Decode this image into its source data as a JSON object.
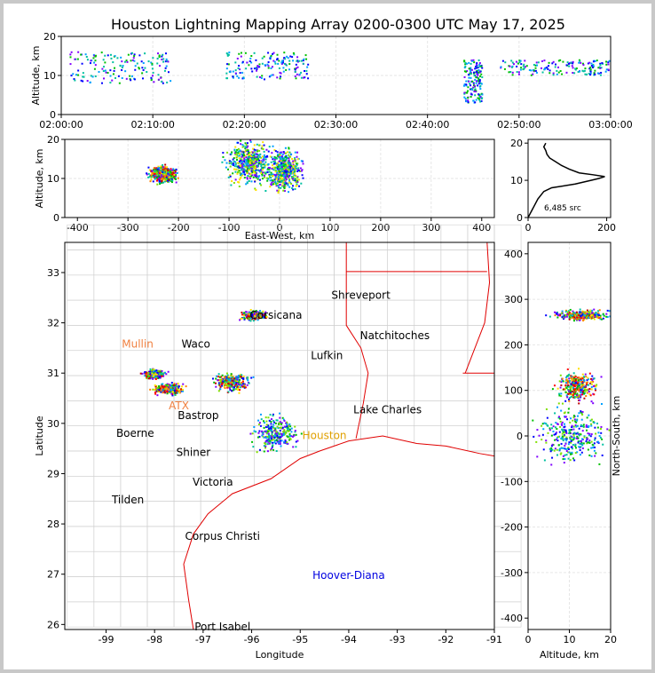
{
  "title": "Houston Lightning Mapping Array 0200-0300 UTC May 17, 2025",
  "chart_data": [
    {
      "id": "time-height",
      "type": "scatter",
      "xlabel": "",
      "ylabel": "Altitude, km",
      "x_ticks": [
        "02:00:00",
        "02:10:00",
        "02:20:00",
        "02:30:00",
        "02:40:00",
        "02:50:00",
        "03:00:00"
      ],
      "xlim": [
        "02:00:00",
        "03:00:00"
      ],
      "ylim": [
        0,
        20
      ],
      "y_ticks": [
        0,
        10,
        20
      ],
      "grid": true,
      "clusters": [
        {
          "t_min": 1,
          "t_max": 12,
          "alt_min": 8,
          "alt_max": 16
        },
        {
          "t_min": 18,
          "t_max": 27,
          "alt_min": 9,
          "alt_max": 16
        },
        {
          "t_min": 44,
          "t_max": 46,
          "alt_min": 3,
          "alt_max": 14
        },
        {
          "t_min": 48,
          "t_max": 60,
          "alt_min": 10,
          "alt_max": 14
        }
      ]
    },
    {
      "id": "east-west-altitude",
      "type": "scatter",
      "xlabel": "East-West, km",
      "ylabel": "Altitude, km",
      "xlim": [
        -425,
        425
      ],
      "ylim": [
        0,
        20
      ],
      "x_ticks": [
        -400,
        -300,
        -200,
        -100,
        0,
        100,
        200,
        300,
        400
      ],
      "y_ticks": [
        0,
        10,
        20
      ],
      "grid": true,
      "clusters": [
        {
          "x": -230,
          "alt": 11,
          "spread_x": 25,
          "spread_alt": 2
        },
        {
          "x": -60,
          "alt": 14,
          "spread_x": 40,
          "spread_alt": 5
        },
        {
          "x": 10,
          "alt": 12,
          "spread_x": 30,
          "spread_alt": 5
        }
      ]
    },
    {
      "id": "altitude-histogram",
      "type": "line",
      "xlabel": "",
      "ylabel": "",
      "xlim": [
        0,
        210
      ],
      "ylim": [
        0,
        21
      ],
      "x_ticks": [
        0,
        200
      ],
      "y_ticks": [
        0,
        10,
        20
      ],
      "annotation": "6,485 src",
      "profile": [
        [
          0,
          0
        ],
        [
          5,
          1
        ],
        [
          10,
          2
        ],
        [
          15,
          3
        ],
        [
          25,
          5
        ],
        [
          40,
          7
        ],
        [
          60,
          8
        ],
        [
          120,
          9
        ],
        [
          160,
          10
        ],
        [
          180,
          10.5
        ],
        [
          195,
          11
        ],
        [
          165,
          11.5
        ],
        [
          130,
          12
        ],
        [
          105,
          13
        ],
        [
          85,
          14
        ],
        [
          70,
          15
        ],
        [
          55,
          16
        ],
        [
          48,
          17
        ],
        [
          45,
          18
        ],
        [
          40,
          19
        ],
        [
          45,
          20
        ]
      ]
    },
    {
      "id": "plan-view",
      "type": "scatter",
      "xlabel": "Longitude",
      "ylabel": "Latitude",
      "xlim": [
        -99.85,
        -91
      ],
      "ylim": [
        25.9,
        33.6
      ],
      "x_ticks": [
        -99,
        -98,
        -97,
        -96,
        -95,
        -94,
        -93,
        -92,
        -91
      ],
      "y_ticks": [
        26,
        27,
        28,
        29,
        30,
        31,
        32,
        33
      ],
      "grid": true,
      "places": [
        {
          "name": "Shreveport",
          "lon": -93.75,
          "lat": 32.55,
          "color": "#000000"
        },
        {
          "name": "Natchitoches",
          "lon": -93.05,
          "lat": 31.75,
          "color": "#000000"
        },
        {
          "name": "Mullin",
          "lon": -98.35,
          "lat": 31.58,
          "color": "#f08040"
        },
        {
          "name": "Waco",
          "lon": -97.15,
          "lat": 31.58,
          "color": "#000000"
        },
        {
          "name": "Lufkin",
          "lon": -94.45,
          "lat": 31.35,
          "color": "#000000"
        },
        {
          "name": "Corsicana",
          "lon": -95.5,
          "lat": 32.15,
          "color": "#000000"
        },
        {
          "name": "Lake Charles",
          "lon": -93.2,
          "lat": 30.27,
          "color": "#000000"
        },
        {
          "name": "ATX",
          "lon": -97.5,
          "lat": 30.35,
          "color": "#f08040"
        },
        {
          "name": "Bastrop",
          "lon": -97.1,
          "lat": 30.16,
          "color": "#000000"
        },
        {
          "name": "Boerne",
          "lon": -98.4,
          "lat": 29.8,
          "color": "#000000"
        },
        {
          "name": "Houston",
          "lon": -94.5,
          "lat": 29.76,
          "color": "#e0a000"
        },
        {
          "name": "Shiner",
          "lon": -97.2,
          "lat": 29.42,
          "color": "#000000"
        },
        {
          "name": "Victoria",
          "lon": -96.8,
          "lat": 28.83,
          "color": "#000000"
        },
        {
          "name": "Tilden",
          "lon": -98.55,
          "lat": 28.48,
          "color": "#000000"
        },
        {
          "name": "Corpus Christi",
          "lon": -96.6,
          "lat": 27.75,
          "color": "#000000"
        },
        {
          "name": "Hoover-Diana",
          "lon": -94.0,
          "lat": 26.98,
          "color": "#0000e0"
        },
        {
          "name": "Port Isabel",
          "lon": -96.6,
          "lat": 25.95,
          "color": "#000000"
        }
      ],
      "clusters": [
        {
          "lon": -95.95,
          "lat": 32.15,
          "r_lon": 0.25,
          "r_lat": 0.08
        },
        {
          "lon": -98.0,
          "lat": 30.98,
          "r_lon": 0.2,
          "r_lat": 0.08
        },
        {
          "lon": -97.7,
          "lat": 30.68,
          "r_lon": 0.3,
          "r_lat": 0.1
        },
        {
          "lon": -96.4,
          "lat": 30.82,
          "r_lon": 0.35,
          "r_lat": 0.15
        },
        {
          "lon": -95.5,
          "lat": 29.8,
          "r_lon": 0.4,
          "r_lat": 0.35
        }
      ]
    },
    {
      "id": "altitude-north-south",
      "type": "scatter",
      "xlabel": "Altitude, km",
      "ylabel": "North-South, km",
      "xlim": [
        0,
        20
      ],
      "ylim": [
        -425,
        425
      ],
      "x_ticks": [
        0,
        10,
        20
      ],
      "y_ticks": [
        -400,
        -300,
        -200,
        -100,
        0,
        100,
        200,
        300,
        400
      ],
      "grid": true,
      "clusters": [
        {
          "alt": 13,
          "ns": 265,
          "spread_alt": 6,
          "spread_ns": 10
        },
        {
          "alt": 12,
          "ns": 110,
          "spread_alt": 4,
          "spread_ns": 30
        },
        {
          "alt": 11,
          "ns": 0,
          "spread_alt": 8,
          "spread_ns": 60
        }
      ]
    }
  ],
  "colors": {
    "frame_bg": "#c8c8c8",
    "state_border": "#e00000",
    "county_border": "#bbbbbb"
  }
}
